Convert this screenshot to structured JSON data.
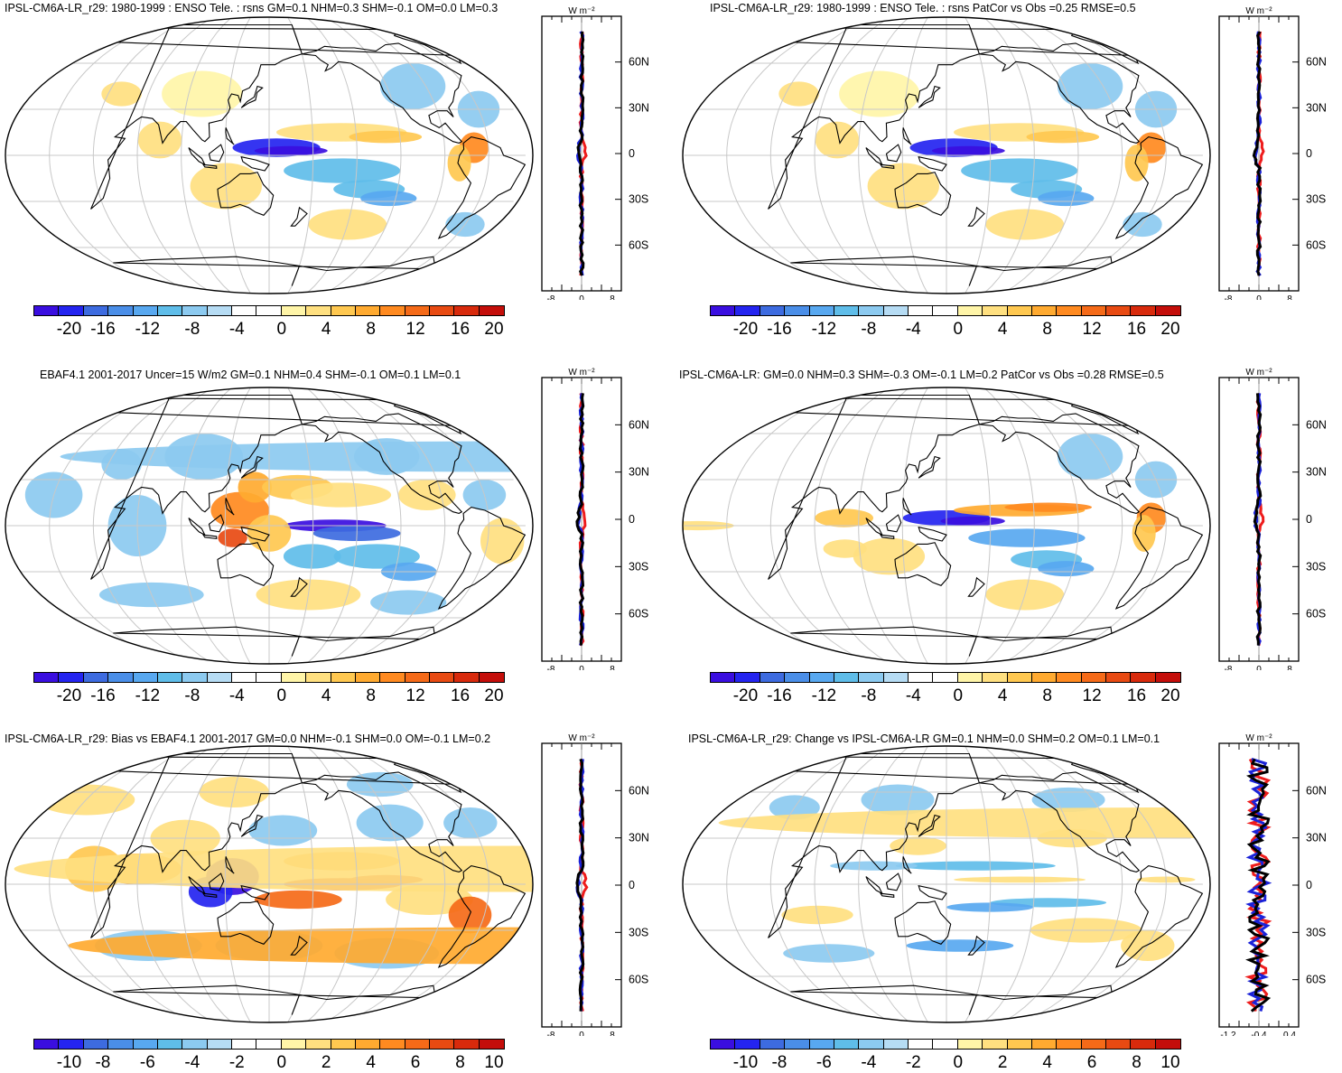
{
  "colors": {
    "scale": [
      "#3a0ee0",
      "#2424f0",
      "#3d6be0",
      "#4a8ee8",
      "#58a8f0",
      "#5fbde9",
      "#8ccaf0",
      "#b6dcf4",
      "#ffffff",
      "#ffffff",
      "#fff5a8",
      "#ffe080",
      "#ffc850",
      "#ffaa30",
      "#ff8a20",
      "#f56a18",
      "#e84a12",
      "#d82a0c",
      "#c40e0a"
    ],
    "red_line": "#ee1c1c",
    "blue_line": "#1a22d8",
    "black_line": "#000000",
    "grid": "#c8c8c8",
    "coast": "#000000"
  },
  "panels": [
    {
      "id": "p1",
      "title": "IPSL-CM6A-LR_r29: 1980-1999 : ENSO Tele. : rsns GM=0.1 NHM=0.3 SHM=-0.1 OM=0.0 LM=0.3",
      "colorbar_labels": [
        "-20",
        "-16",
        "-12",
        "-8",
        "-4",
        "0",
        "4",
        "8",
        "12",
        "16",
        "20"
      ],
      "zonal_x_labels": [
        "-8",
        "0",
        "8"
      ],
      "zonal_y_labels": [
        "60N",
        "30N",
        "0",
        "30S",
        "60S"
      ],
      "zonal_units": "W m⁻²",
      "pattern": "enso_model"
    },
    {
      "id": "p2",
      "title": "IPSL-CM6A-LR_r29: 1980-1999 : ENSO Tele. : rsns PatCor vs Obs =0.25 RMSE=0.5",
      "colorbar_labels": [
        "-20",
        "-16",
        "-12",
        "-8",
        "-4",
        "0",
        "4",
        "8",
        "12",
        "16",
        "20"
      ],
      "zonal_x_labels": [
        "-8",
        "0",
        "8"
      ],
      "zonal_y_labels": [
        "60N",
        "30N",
        "0",
        "30S",
        "60S"
      ],
      "zonal_units": "W m⁻²",
      "pattern": "enso_model"
    },
    {
      "id": "p3",
      "title": "EBAF4.1 2001-2017 Uncer=15 W/m2 GM=0.1 NHM=0.4 SHM=-0.1 OM=0.1 LM=0.1",
      "colorbar_labels": [
        "-20",
        "-16",
        "-12",
        "-8",
        "-4",
        "0",
        "4",
        "8",
        "12",
        "16",
        "20"
      ],
      "zonal_x_labels": [
        "-8",
        "0",
        "8"
      ],
      "zonal_y_labels": [
        "60N",
        "30N",
        "0",
        "30S",
        "60S"
      ],
      "zonal_units": "W m⁻²",
      "pattern": "enso_obs"
    },
    {
      "id": "p4",
      "title": "IPSL-CM6A-LR: GM=0.0 NHM=0.3 SHM=-0.3 OM=-0.1 LM=0.2 PatCor vs Obs =0.28 RMSE=0.5",
      "colorbar_labels": [
        "-20",
        "-16",
        "-12",
        "-8",
        "-4",
        "0",
        "4",
        "8",
        "12",
        "16",
        "20"
      ],
      "zonal_x_labels": [
        "-8",
        "0",
        "8"
      ],
      "zonal_y_labels": [
        "60N",
        "30N",
        "0",
        "30S",
        "60S"
      ],
      "zonal_units": "W m⁻²",
      "pattern": "enso_model2"
    },
    {
      "id": "p5",
      "title": "IPSL-CM6A-LR_r29: Bias vs EBAF4.1 2001-2017 GM=0.0 NHM=-0.1 SHM=0.0 OM=-0.1 LM=0.2",
      "colorbar_labels": [
        "-10",
        "-8",
        "-6",
        "-4",
        "-2",
        "0",
        "2",
        "4",
        "6",
        "8",
        "10"
      ],
      "zonal_x_labels": [
        "-8",
        "0",
        "8"
      ],
      "zonal_y_labels": [
        "60N",
        "30N",
        "0",
        "30S",
        "60S"
      ],
      "zonal_units": "W m⁻²",
      "pattern": "bias"
    },
    {
      "id": "p6",
      "title": "IPSL-CM6A-LR_r29: Change vs IPSL-CM6A-LR GM=0.1 NHM=0.0 SHM=0.2 OM=0.1 LM=0.1",
      "colorbar_labels": [
        "-10",
        "-8",
        "-6",
        "-4",
        "-2",
        "0",
        "2",
        "4",
        "6",
        "8",
        "10"
      ],
      "zonal_x_labels": [
        "-1.2",
        "-0.4",
        "0.4"
      ],
      "zonal_y_labels": [
        "60N",
        "30N",
        "0",
        "30S",
        "60S"
      ],
      "zonal_units": "W m⁻²",
      "pattern": "change"
    }
  ]
}
